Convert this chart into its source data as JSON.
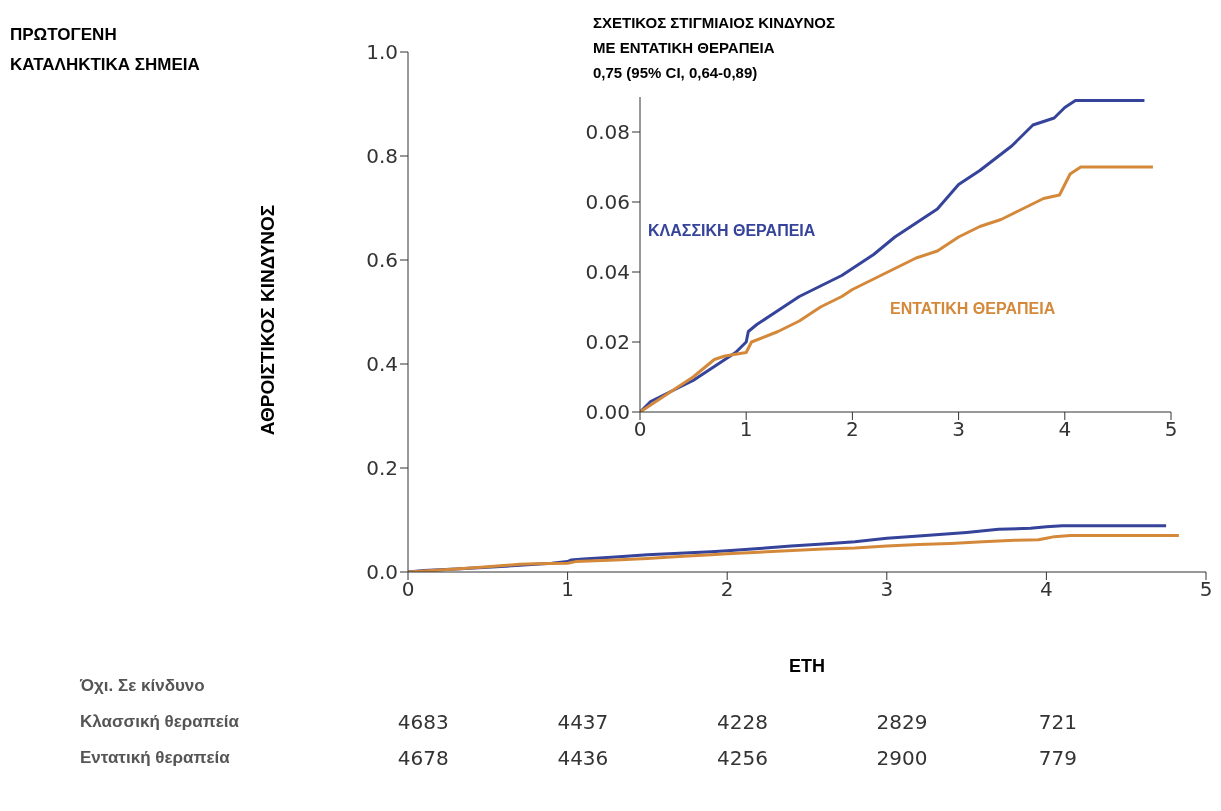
{
  "chart_data": [
    {
      "type": "line",
      "xlabel": "ΕΤΗ",
      "ylabel": "ΑΘΡΟΙΣΤΙΚΟΣ ΚΙΝΔΥΝΟΣ",
      "xlim": [
        0,
        5
      ],
      "xticks": [
        0,
        1,
        2,
        3,
        4,
        5
      ],
      "ylim": [
        0,
        1
      ],
      "yticks": [
        {
          "value": 0,
          "label": "0.0"
        },
        {
          "value": 0.2,
          "label": "0.2"
        },
        {
          "value": 0.4,
          "label": "0.4"
        },
        {
          "value": 0.6,
          "label": "0.6"
        },
        {
          "value": 0.8,
          "label": "0.8"
        },
        {
          "value": 1,
          "label": "1.0"
        }
      ],
      "series": [
        {
          "color": "#35449a",
          "x": [
            0,
            0.1,
            0.3,
            0.5,
            0.7,
            0.9,
            1.0,
            1.02,
            1.1,
            1.3,
            1.5,
            1.7,
            1.9,
            2.0,
            2.2,
            2.4,
            2.6,
            2.8,
            3.0,
            3.2,
            3.5,
            3.7,
            3.9,
            4.0,
            4.1,
            4.75
          ],
          "values": [
            0,
            0.003,
            0.006,
            0.009,
            0.013,
            0.017,
            0.02,
            0.023,
            0.025,
            0.029,
            0.033,
            0.036,
            0.039,
            0.041,
            0.045,
            0.05,
            0.054,
            0.058,
            0.065,
            0.069,
            0.076,
            0.082,
            0.084,
            0.087,
            0.089,
            0.089
          ]
        },
        {
          "color": "#d4893a",
          "x": [
            0,
            0.3,
            0.5,
            0.7,
            0.8,
            1.0,
            1.05,
            1.3,
            1.5,
            1.7,
            1.9,
            2.0,
            2.6,
            2.8,
            3.0,
            3.2,
            3.4,
            3.6,
            3.8,
            3.95,
            4.0,
            4.05,
            4.15,
            4.83
          ],
          "values": [
            0,
            0.006,
            0.01,
            0.015,
            0.016,
            0.017,
            0.02,
            0.023,
            0.026,
            0.03,
            0.033,
            0.035,
            0.044,
            0.046,
            0.05,
            0.053,
            0.055,
            0.058,
            0.061,
            0.062,
            0.065,
            0.068,
            0.07,
            0.07
          ]
        }
      ],
      "annotations": [
        "ΠΡΩΤΟΓΕΝΗ ΚΑΤΑΛΗΚΤΙΚΑ ΣΗΜΕΙΑ",
        "Όχι. Σε κίνδυνο",
        "Κλασσική θεραπεία",
        "4683",
        "4437",
        "4228",
        "2829",
        "721",
        "Εντατική θεραπεία",
        "4678",
        "4436",
        "4256",
        "2900",
        "779"
      ]
    },
    {
      "type": "line",
      "xlim": [
        0,
        5
      ],
      "xticks": [
        0,
        1,
        2,
        3,
        4,
        5
      ],
      "ylim": [
        0,
        0.09
      ],
      "yticks": [
        {
          "value": 0,
          "label": "0.00"
        },
        {
          "value": 0.02,
          "label": "0.02"
        },
        {
          "value": 0.04,
          "label": "0.04"
        },
        {
          "value": 0.06,
          "label": "0.06"
        },
        {
          "value": 0.08,
          "label": "0.08"
        }
      ],
      "series": [
        {
          "name": "ΚΛΑΣΣΙΚΗ ΘΕΡΑΠΕΙΑ",
          "color": "#35449a",
          "x": [
            0,
            0.1,
            0.3,
            0.5,
            0.7,
            0.9,
            1.0,
            1.02,
            1.1,
            1.3,
            1.5,
            1.7,
            1.9,
            2.0,
            2.2,
            2.4,
            2.6,
            2.8,
            3.0,
            3.2,
            3.5,
            3.7,
            3.9,
            4.0,
            4.1,
            4.75
          ],
          "values": [
            0,
            0.003,
            0.006,
            0.009,
            0.013,
            0.017,
            0.02,
            0.023,
            0.025,
            0.029,
            0.033,
            0.036,
            0.039,
            0.041,
            0.045,
            0.05,
            0.054,
            0.058,
            0.065,
            0.069,
            0.076,
            0.082,
            0.084,
            0.087,
            0.089,
            0.089
          ]
        },
        {
          "name": "ΕΝΤΑΤΙΚΗ ΘΕΡΑΠΕΙΑ",
          "color": "#d4893a",
          "x": [
            0,
            0.3,
            0.5,
            0.7,
            0.8,
            1.0,
            1.05,
            1.3,
            1.5,
            1.7,
            1.9,
            2.0,
            2.6,
            2.8,
            3.0,
            3.2,
            3.4,
            3.6,
            3.8,
            3.95,
            4.0,
            4.05,
            4.15,
            4.83
          ],
          "values": [
            0,
            0.006,
            0.01,
            0.015,
            0.016,
            0.017,
            0.02,
            0.023,
            0.026,
            0.03,
            0.033,
            0.035,
            0.044,
            0.046,
            0.05,
            0.053,
            0.055,
            0.058,
            0.061,
            0.062,
            0.065,
            0.068,
            0.07,
            0.07
          ]
        }
      ],
      "annotations": [
        "ΣΧΕΤΙΚΟΣ ΣΤΙΓΜΙΑΙΟΣ ΚΙΝΔΥΝΟΣ\nΜΕ ΕΝΤΑΤΙΚΗ ΘΕΡΑΠΕΙΑ\n0,75 (95% CI, 0,64-0,89)"
      ]
    }
  ]
}
